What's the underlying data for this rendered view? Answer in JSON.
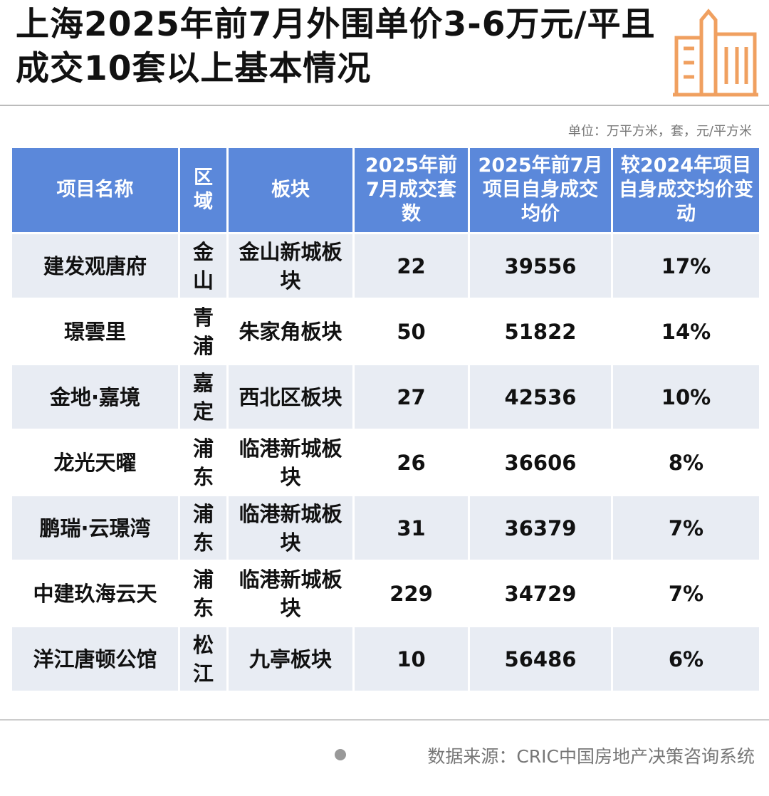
{
  "header": {
    "title": "上海2025年前7月外围单价3-6万元/平且成交10套以上基本情况"
  },
  "unit_note": "单位：万平方米，套，元/平方米",
  "table": {
    "columns": [
      "项目名称",
      "区域",
      "板块",
      "2025年前7月成交套数",
      "2025年前7月项目自身成交均价",
      "较2024年项目自身成交均价变动"
    ],
    "rows": [
      [
        "建发观唐府",
        "金山",
        "金山新城板块",
        "22",
        "39556",
        "17%"
      ],
      [
        "璟雲里",
        "青浦",
        "朱家角板块",
        "50",
        "51822",
        "14%"
      ],
      [
        "金地·嘉境",
        "嘉定",
        "西北区板块",
        "27",
        "42536",
        "10%"
      ],
      [
        "龙光天曜",
        "浦东",
        "临港新城板块",
        "26",
        "36606",
        "8%"
      ],
      [
        "鹏瑞·云璟湾",
        "浦东",
        "临港新城板块",
        "31",
        "36379",
        "7%"
      ],
      [
        "中建玖海云天",
        "浦东",
        "临港新城板块",
        "229",
        "34729",
        "7%"
      ],
      [
        "洋江唐顿公馆",
        "松江",
        "九亭板块",
        "10",
        "56486",
        "6%"
      ]
    ]
  },
  "source": "数据来源：CRIC中国房地产决策咨询系统"
}
